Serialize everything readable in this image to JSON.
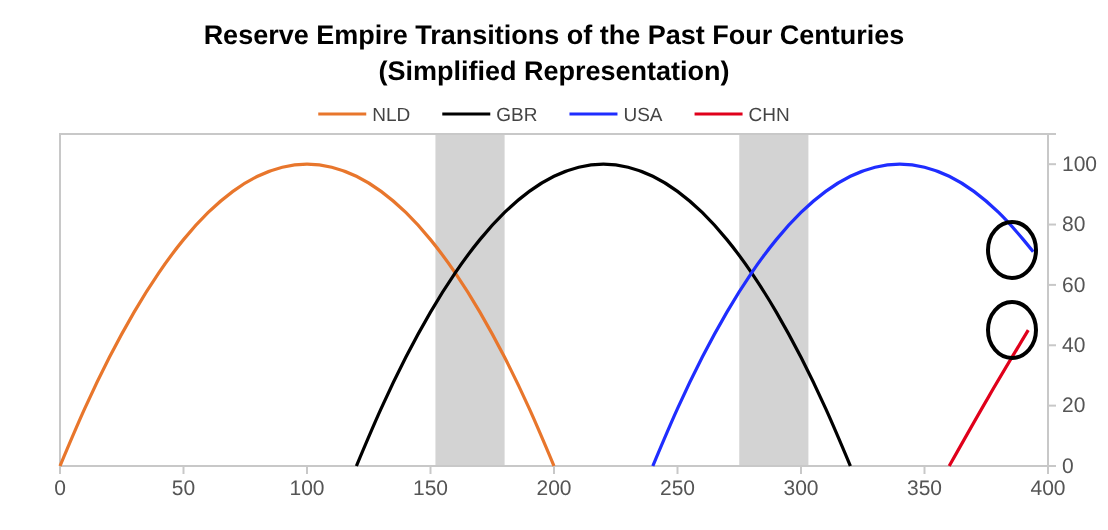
{
  "chart_data": {
    "type": "line",
    "title": "Reserve Empire Transitions of the Past Four Centuries",
    "subtitle": "(Simplified Representation)",
    "xlim": [
      0,
      400
    ],
    "xticks": [
      0,
      50,
      100,
      150,
      200,
      250,
      300,
      350,
      400
    ],
    "ylim": [
      0,
      110
    ],
    "yticks": [
      0,
      20,
      40,
      60,
      80,
      100
    ],
    "grid": false,
    "legend": "top",
    "marker": "none",
    "line_style": "solid",
    "bands": [
      {
        "axis": "x",
        "from": 152,
        "to": 180,
        "color": "#d3d3d3"
      },
      {
        "axis": "x",
        "from": 275,
        "to": 303,
        "color": "#d3d3d3"
      }
    ],
    "series": [
      {
        "name": "NLD",
        "color": "#e8762c",
        "x": [
          0,
          10,
          20,
          30,
          40,
          50,
          60,
          70,
          80,
          90,
          100,
          110,
          120,
          130,
          140,
          150,
          160,
          170,
          180,
          190,
          200
        ],
        "values": [
          0,
          19,
          36,
          51,
          64,
          75,
          84,
          91,
          96,
          99,
          100,
          99,
          96,
          91,
          84,
          75,
          64,
          51,
          36,
          19,
          0
        ]
      },
      {
        "name": "GBR",
        "color": "#000000",
        "x": [
          120,
          130,
          140,
          150,
          160,
          170,
          180,
          190,
          200,
          210,
          220,
          230,
          240,
          250,
          260,
          270,
          280,
          290,
          300,
          310,
          320
        ],
        "values": [
          0,
          19,
          36,
          51,
          64,
          75,
          84,
          91,
          96,
          99,
          100,
          99,
          96,
          91,
          84,
          75,
          64,
          51,
          36,
          19,
          0
        ]
      },
      {
        "name": "USA",
        "color": "#1f2dff",
        "x": [
          240,
          250,
          260,
          270,
          280,
          290,
          300,
          310,
          320,
          330,
          340,
          350,
          360,
          370,
          380,
          390,
          394
        ],
        "values": [
          0,
          19,
          36,
          51,
          64,
          75,
          84,
          91,
          96,
          99,
          100,
          99,
          96,
          91,
          84,
          75,
          71
        ]
      },
      {
        "name": "CHN",
        "color": "#e0001b",
        "x": [
          360,
          376,
          392
        ],
        "values": [
          0,
          23,
          45
        ]
      }
    ]
  }
}
